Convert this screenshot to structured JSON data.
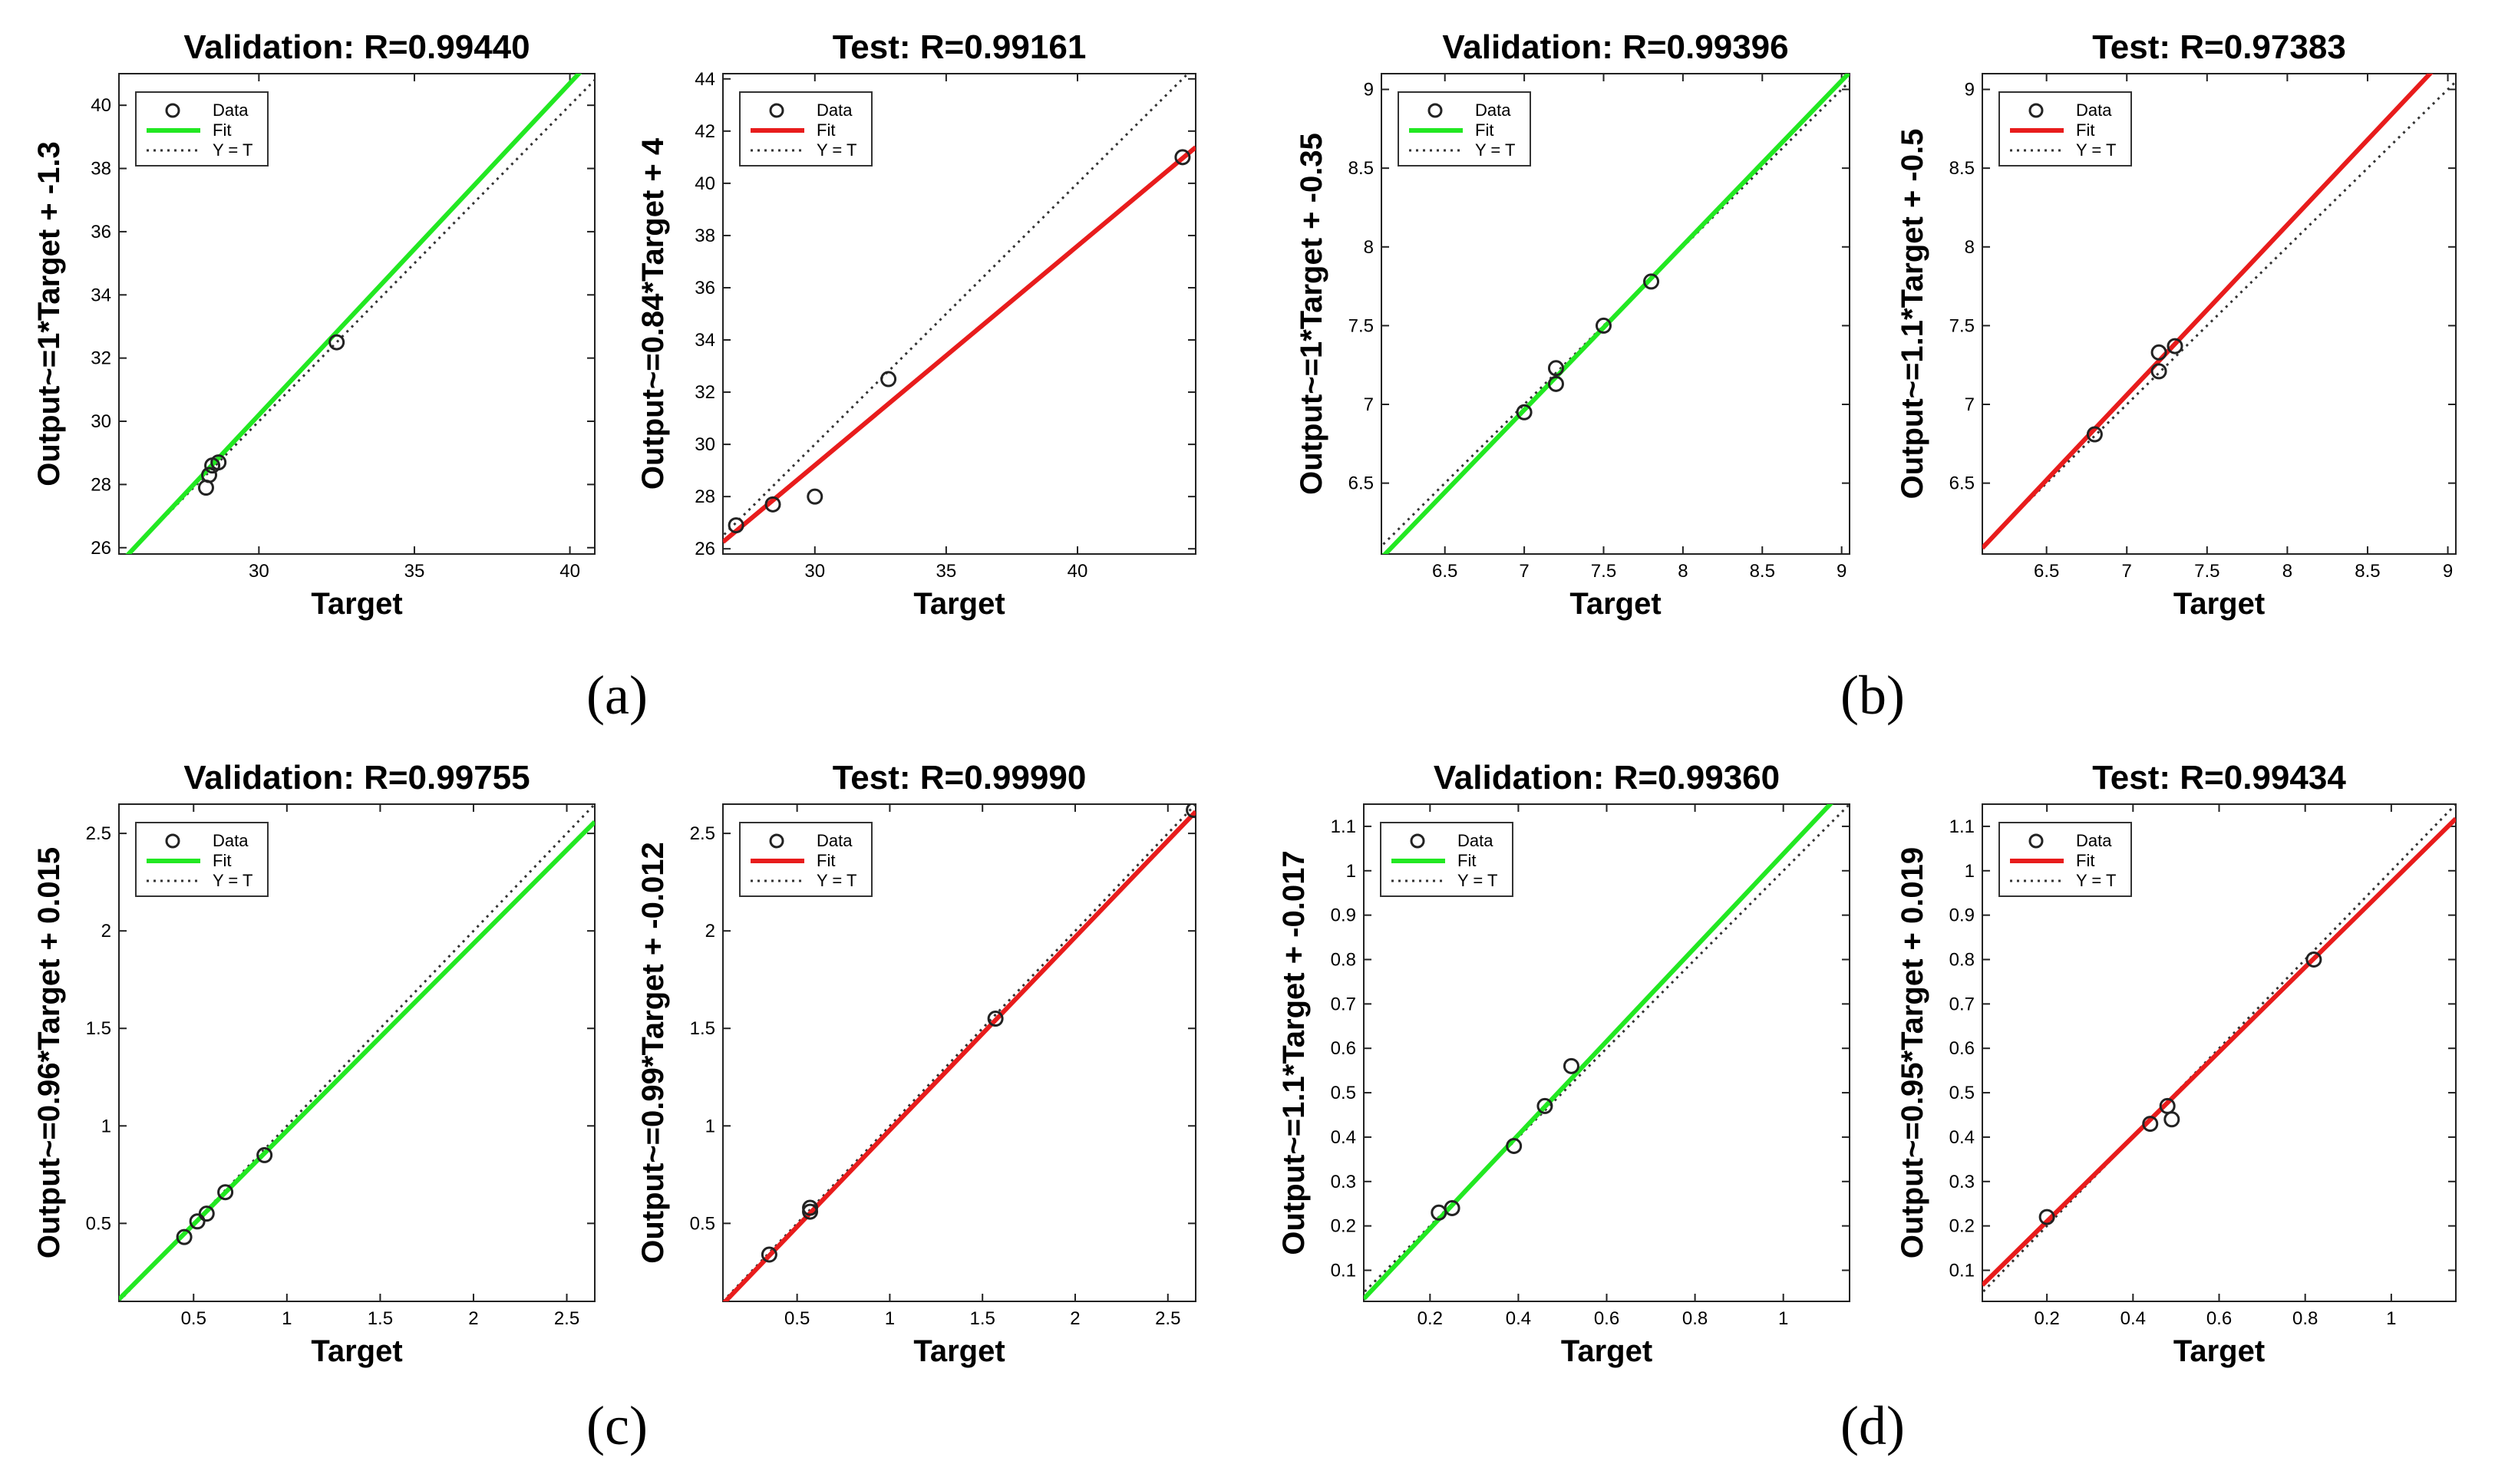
{
  "colors": {
    "validation_fit": "#22e822",
    "test_fit": "#e81c1c",
    "ideal": "#333333",
    "marker": "#222222"
  },
  "legend": {
    "data": "Data",
    "fit": "Fit",
    "ideal": "Y = T"
  },
  "panel_labels": [
    "(a)",
    "(b)",
    "(c)",
    "(d)"
  ],
  "chart_data": [
    {
      "type": "scatter",
      "panel": "(a)",
      "title": "Validation: R=0.99440",
      "xlabel": "Target",
      "ylabel": "Output~=1*Target + -1.3",
      "xlim": [
        25.5,
        40.8
      ],
      "ylim": [
        25.8,
        41
      ],
      "xticks": [
        30,
        35,
        40
      ],
      "yticks": [
        26,
        28,
        30,
        32,
        34,
        36,
        38,
        40
      ],
      "fit": {
        "slope": 1.05,
        "intercept": -1.3,
        "color_key": "validation_fit"
      },
      "points": [
        [
          28.3,
          27.9
        ],
        [
          28.4,
          28.3
        ],
        [
          28.5,
          28.6
        ],
        [
          28.7,
          28.7
        ],
        [
          32.5,
          32.5
        ]
      ]
    },
    {
      "type": "scatter",
      "panel": "(a)",
      "title": "Test: R=0.99161",
      "xlabel": "Target",
      "ylabel": "Output~=0.84*Target + 4",
      "xlim": [
        26.5,
        44.5
      ],
      "ylim": [
        25.8,
        44.2
      ],
      "xticks": [
        30,
        35,
        40
      ],
      "yticks": [
        26,
        28,
        30,
        32,
        34,
        36,
        38,
        40,
        42,
        44
      ],
      "fit": {
        "slope": 0.84,
        "intercept": 4,
        "color_key": "test_fit"
      },
      "points": [
        [
          27.0,
          26.9
        ],
        [
          28.4,
          27.7
        ],
        [
          30.0,
          28.0
        ],
        [
          32.8,
          32.5
        ],
        [
          44.0,
          41.0
        ]
      ]
    },
    {
      "type": "scatter",
      "panel": "(b)",
      "title": "Validation: R=0.99396",
      "xlabel": "Target",
      "ylabel": "Output~=1*Target + -0.35",
      "xlim": [
        6.1,
        9.05
      ],
      "ylim": [
        6.05,
        9.1
      ],
      "xticks": [
        6.5,
        7,
        7.5,
        8,
        8.5,
        9
      ],
      "yticks": [
        6.5,
        7,
        7.5,
        8,
        8.5,
        9
      ],
      "fit": {
        "slope": 1.045,
        "intercept": -0.35,
        "color_key": "validation_fit"
      },
      "points": [
        [
          7.0,
          6.95
        ],
        [
          7.2,
          7.13
        ],
        [
          7.2,
          7.23
        ],
        [
          7.5,
          7.5
        ],
        [
          7.8,
          7.78
        ]
      ]
    },
    {
      "type": "scatter",
      "panel": "(b)",
      "title": "Test: R=0.97383",
      "xlabel": "Target",
      "ylabel": "Output~=1.1*Target + -0.5",
      "xlim": [
        6.1,
        9.05
      ],
      "ylim": [
        6.05,
        9.1
      ],
      "xticks": [
        6.5,
        7,
        7.5,
        8,
        8.5,
        9
      ],
      "yticks": [
        6.5,
        7,
        7.5,
        8,
        8.5,
        9
      ],
      "fit": {
        "slope": 1.08,
        "intercept": -0.5,
        "color_key": "test_fit"
      },
      "points": [
        [
          6.8,
          6.81
        ],
        [
          7.2,
          7.21
        ],
        [
          7.2,
          7.33
        ],
        [
          7.3,
          7.37
        ]
      ]
    },
    {
      "type": "scatter",
      "panel": "(c)",
      "title": "Validation: R=0.99755",
      "xlabel": "Target",
      "ylabel": "Output~=0.96*Target + 0.015",
      "xlim": [
        0.1,
        2.65
      ],
      "ylim": [
        0.1,
        2.65
      ],
      "xticks": [
        0.5,
        1,
        1.5,
        2,
        2.5
      ],
      "yticks": [
        0.5,
        1,
        1.5,
        2,
        2.5
      ],
      "fit": {
        "slope": 0.96,
        "intercept": 0.015,
        "color_key": "validation_fit"
      },
      "points": [
        [
          0.45,
          0.43
        ],
        [
          0.52,
          0.51
        ],
        [
          0.57,
          0.55
        ],
        [
          0.67,
          0.66
        ],
        [
          0.88,
          0.85
        ]
      ]
    },
    {
      "type": "scatter",
      "panel": "(c)",
      "title": "Test: R=0.99990",
      "xlabel": "Target",
      "ylabel": "Output~=0.99*Target + -0.012",
      "xlim": [
        0.1,
        2.65
      ],
      "ylim": [
        0.1,
        2.65
      ],
      "xticks": [
        0.5,
        1,
        1.5,
        2,
        2.5
      ],
      "yticks": [
        0.5,
        1,
        1.5,
        2,
        2.5
      ],
      "fit": {
        "slope": 0.99,
        "intercept": -0.012,
        "color_key": "test_fit"
      },
      "points": [
        [
          0.35,
          0.34
        ],
        [
          0.57,
          0.56
        ],
        [
          0.57,
          0.58
        ],
        [
          1.57,
          1.55
        ],
        [
          2.64,
          2.62
        ]
      ]
    },
    {
      "type": "scatter",
      "panel": "(d)",
      "title": "Validation: R=0.99360",
      "xlabel": "Target",
      "ylabel": "Output~=1.1*Target + -0.017",
      "xlim": [
        0.05,
        1.15
      ],
      "ylim": [
        0.03,
        1.15
      ],
      "xticks": [
        0.2,
        0.4,
        0.6,
        0.8,
        1
      ],
      "yticks": [
        0.1,
        0.2,
        0.3,
        0.4,
        0.5,
        0.6,
        0.7,
        0.8,
        0.9,
        1,
        1.1
      ],
      "fit": {
        "slope": 1.055,
        "intercept": -0.017,
        "color_key": "validation_fit"
      },
      "points": [
        [
          0.22,
          0.23
        ],
        [
          0.25,
          0.24
        ],
        [
          0.39,
          0.38
        ],
        [
          0.46,
          0.47
        ],
        [
          0.52,
          0.56
        ]
      ]
    },
    {
      "type": "scatter",
      "panel": "(d)",
      "title": "Test: R=0.99434",
      "xlabel": "Target",
      "ylabel": "Output~=0.95*Target + 0.019",
      "xlim": [
        0.05,
        1.15
      ],
      "ylim": [
        0.03,
        1.15
      ],
      "xticks": [
        0.2,
        0.4,
        0.6,
        0.8,
        1
      ],
      "yticks": [
        0.1,
        0.2,
        0.3,
        0.4,
        0.5,
        0.6,
        0.7,
        0.8,
        0.9,
        1,
        1.1
      ],
      "fit": {
        "slope": 0.955,
        "intercept": 0.019,
        "color_key": "test_fit"
      },
      "points": [
        [
          0.2,
          0.22
        ],
        [
          0.44,
          0.43
        ],
        [
          0.48,
          0.47
        ],
        [
          0.49,
          0.44
        ],
        [
          0.82,
          0.8
        ]
      ]
    }
  ]
}
